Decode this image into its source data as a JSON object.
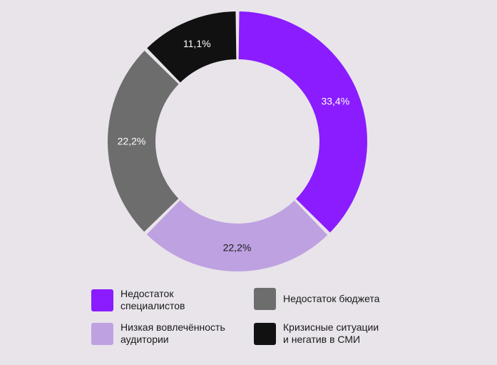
{
  "chart_data": {
    "type": "pie",
    "variant": "donut",
    "background": "#e8e4ea",
    "slices": [
      {
        "label": "Недостаток\nспециалистов",
        "value": 33.4,
        "value_label": "33,4%",
        "color": "#8a1cff",
        "text_color": "#ffffff"
      },
      {
        "label": "Низкая вовлечённость\nаудитории",
        "value": 22.2,
        "value_label": "22,2%",
        "color": "#bea1e1",
        "text_color": "#1a1a1a"
      },
      {
        "label": "Недостаток бюджета",
        "value": 22.2,
        "value_label": "22,2%",
        "color": "#6d6d6d",
        "text_color": "#ffffff"
      },
      {
        "label": "Кризисные ситуации\nи негатив в СМИ",
        "value": 11.1,
        "value_label": "11,1%",
        "color": "#111111",
        "text_color": "#ffffff"
      }
    ],
    "legend_order": [
      0,
      2,
      1,
      3
    ],
    "legend_placement": "bottom"
  }
}
